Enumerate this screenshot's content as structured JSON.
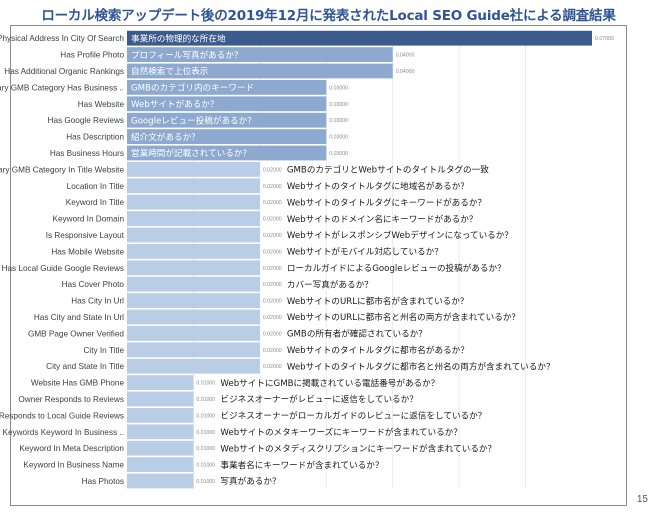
{
  "title": "ローカル検索アップデート後の2019年12月に発表されたLocal SEO Guide社による調査結果",
  "page_number": "15",
  "colors": {
    "bar_dark": "#3b5b8c",
    "bar_mid": "#8ea9cf",
    "bar_light": "#b9cde6",
    "title": "#2f5597"
  },
  "chart_data": {
    "type": "bar",
    "orientation": "horizontal",
    "title": "",
    "xlabel": "",
    "ylabel": "",
    "xlim": [
      0,
      0.07
    ],
    "grid": true,
    "categories": [
      "Physical Address In City Of Search",
      "Has Profile Photo",
      "Has Additional Organic Rankings",
      "Keyword In Primary GMB Category Has Business ..",
      "Has Website",
      "Has Google Reviews",
      "Has Description",
      "Has Business Hours",
      "Primary GMB Category In Title Website",
      "Location In Title",
      "Keyword In Title",
      "Keyword In Domain",
      "Is Responsive Layout",
      "Has Mobile Website",
      "Has Local Guide Google Reviews",
      "Has Cover Photo",
      "Has City In Url",
      "Has City and State In Url",
      "GMB Page Owner Verified",
      "City In Title",
      "City and State In Title",
      "Website Has GMB Phone",
      "Owner Responds to Reviews",
      "Owner Responds to Local Guide Reviews",
      "Keyword In Meta Keywords Keyword In Business ..",
      "Keyword In Meta Description",
      "Keyword In Business Name",
      "Has Photos"
    ],
    "values": [
      0.07,
      0.04,
      0.04,
      0.03,
      0.03,
      0.03,
      0.03,
      0.03,
      0.02,
      0.02,
      0.02,
      0.02,
      0.02,
      0.02,
      0.02,
      0.02,
      0.02,
      0.02,
      0.02,
      0.02,
      0.02,
      0.01,
      0.01,
      0.01,
      0.01,
      0.01,
      0.01,
      0.01
    ],
    "value_labels": [
      "0.07000",
      "0.04000",
      "0.04000",
      "0.03000",
      "0.03000",
      "0.03000",
      "0.03000",
      "0.03000",
      "0.02000",
      "0.02000",
      "0.02000",
      "0.02000",
      "0.02000",
      "0.02000",
      "0.02000",
      "0.02000",
      "0.02000",
      "0.02000",
      "0.02000",
      "0.02000",
      "0.02000",
      "0.01000",
      "0.01000",
      "0.01000",
      "0.01000",
      "0.01000",
      "0.01000",
      "0.01000"
    ],
    "annotations": [
      "事業所の物理的な所在地",
      "プロフィール写真があるか？",
      "自然検索で上位表示",
      "GMBのカテゴリ内のキーワード",
      "Webサイトがあるか？",
      "Googleレビュー投稿があるか？",
      "紹介文があるか？",
      "営業時間が記載されているか？",
      "GMBのカテゴリとWebサイトのタイトルタグの一致",
      "Webサイトのタイトルタグに地域名があるか？",
      "Webサイトのタイトルタグにキーワードがあるか？",
      "Webサイトのドメイン名にキーワードがあるか？",
      "WebサイトがレスポンシブWebデザインになっているか？",
      "Webサイトがモバイル対応しているか？",
      "ローカルガイドによるGoogleレビューの投稿があるか？",
      "カバー写真があるか？",
      "WebサイトのURLに都市名が含まれているか？",
      "WebサイトのURLに都市名と州名の両方が含まれているか？",
      "GMBの所有者が確認されているか？",
      "Webサイトのタイトルタグに都市名があるか？",
      "Webサイトのタイトルタグに都市名と州名の両方が含まれているか？",
      "WebサイトにGMBに掲載されている電話番号があるか？",
      "ビジネスオーナーがレビューに返信をしているか？",
      "ビジネスオーナーがローカルガイドのレビューに返信をしているか？",
      "Webサイトのメタキーワーズにキーワードが含まれているか？",
      "Webサイトのメタディスクリプションにキーワードが含まれているか？",
      "事業者名にキーワードが含まれているか？",
      "写真があるか？"
    ]
  }
}
